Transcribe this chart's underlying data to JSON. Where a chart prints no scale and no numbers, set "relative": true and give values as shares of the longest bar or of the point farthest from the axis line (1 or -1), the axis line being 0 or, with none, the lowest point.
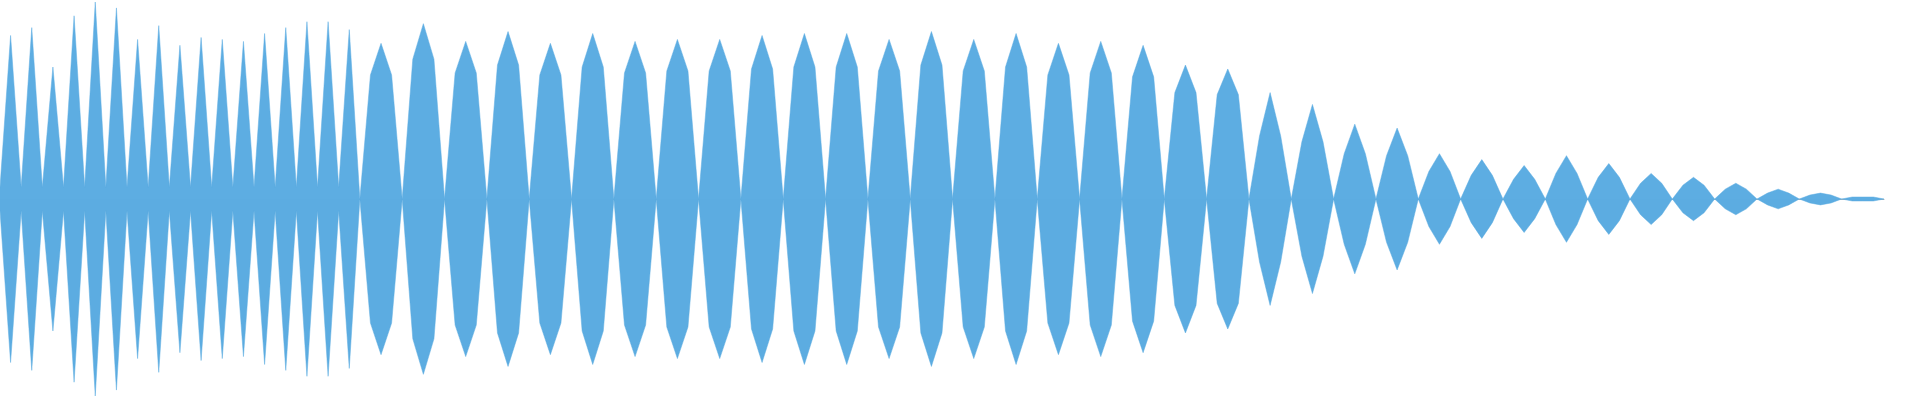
{
  "chart_data": {
    "type": "area",
    "relative": true,
    "categories": [
      null,
      null,
      null,
      null,
      null,
      null,
      null,
      null,
      null,
      null,
      null,
      null,
      null,
      null,
      null,
      null,
      null,
      null,
      null,
      null,
      null,
      null,
      null,
      null,
      null,
      null,
      null,
      null,
      null,
      null,
      null,
      null,
      null,
      null,
      null,
      null,
      null,
      null,
      null,
      null,
      null,
      null,
      null,
      null,
      null,
      null,
      null,
      null,
      null,
      null,
      null,
      null,
      null,
      null,
      null,
      null,
      null,
      null,
      null,
      null,
      null,
      null,
      null,
      null,
      null,
      null,
      null,
      null,
      null,
      null,
      null,
      null,
      null,
      null,
      null,
      null,
      null,
      null,
      null,
      null,
      null,
      null,
      null,
      null,
      null,
      null,
      null,
      null,
      null,
      null,
      null,
      null,
      null,
      null,
      null,
      null,
      null,
      null,
      null,
      null,
      null,
      null,
      null,
      null,
      null,
      null,
      null,
      null,
      null,
      null,
      null,
      null,
      null,
      null,
      null,
      null,
      null,
      null,
      null,
      null,
      null,
      null,
      null,
      null,
      null,
      null,
      null,
      null,
      null,
      null,
      null,
      null,
      null,
      null,
      null,
      null,
      null,
      null,
      null,
      null,
      null,
      null,
      null,
      null,
      null,
      null,
      null,
      null,
      null,
      null,
      null,
      null,
      null,
      null,
      null,
      null,
      null,
      null,
      null,
      null,
      null,
      null,
      null,
      null,
      null,
      null,
      null,
      null,
      null,
      null,
      null,
      null,
      null,
      null,
      null,
      null,
      null,
      null,
      null
    ],
    "series": [
      {
        "color": "#5dade2",
        "values": [
          0.06,
          0.83,
          0.06,
          0.87,
          0.06,
          0.67,
          0.06,
          0.93,
          0.06,
          1,
          0.06,
          0.97,
          0.06,
          0.81,
          0.06,
          0.88,
          0.06,
          0.78,
          0.06,
          0.82,
          0.06,
          0.81,
          0.06,
          0.8,
          0.06,
          0.84,
          0.06,
          0.87,
          0.06,
          0.9,
          0.06,
          0.9,
          0.06,
          0.86,
          0,
          0.63,
          0.79,
          0.63,
          0,
          0.71,
          0.89,
          0.71,
          0,
          0.64,
          0.8,
          0.64,
          0,
          0.68,
          0.85,
          0.68,
          0,
          0.63,
          0.79,
          0.63,
          0,
          0.67,
          0.84,
          0.67,
          0,
          0.64,
          0.8,
          0.64,
          0,
          0.65,
          0.81,
          0.65,
          0,
          0.65,
          0.81,
          0.65,
          0,
          0.66,
          0.83,
          0.66,
          0,
          0.67,
          0.84,
          0.67,
          0,
          0.67,
          0.84,
          0.67,
          0,
          0.65,
          0.81,
          0.65,
          0,
          0.68,
          0.85,
          0.68,
          0,
          0.65,
          0.81,
          0.65,
          0,
          0.67,
          0.84,
          0.67,
          0,
          0.63,
          0.79,
          0.63,
          0,
          0.64,
          0.8,
          0.64,
          0,
          0.62,
          0.78,
          0.62,
          0,
          0.54,
          0.68,
          0.54,
          0,
          0.53,
          0.66,
          0.53,
          0,
          0.32,
          0.54,
          0.32,
          0,
          0.29,
          0.48,
          0.29,
          0,
          0.23,
          0.38,
          0.23,
          0,
          0.22,
          0.36,
          0.22,
          0,
          0.14,
          0.23,
          0.14,
          0,
          0.12,
          0.2,
          0.12,
          0,
          0.1,
          0.17,
          0.1,
          0,
          0.13,
          0.22,
          0.13,
          0,
          0.11,
          0.18,
          0.11,
          0,
          0.08,
          0.13,
          0.08,
          0,
          0.07,
          0.11,
          0.07,
          0,
          0.05,
          0.08,
          0.05,
          0,
          0.03,
          0.05,
          0.03,
          0,
          0.02,
          0.03,
          0.02,
          0,
          0.01,
          0.01,
          0.01,
          0
        ]
      },
      {
        "color": "#5cace1",
        "values": [
          -0.06,
          -0.83,
          -0.06,
          -0.87,
          -0.06,
          -0.67,
          -0.06,
          -0.93,
          -0.06,
          -1,
          -0.06,
          -0.97,
          -0.06,
          -0.81,
          -0.06,
          -0.88,
          -0.06,
          -0.78,
          -0.06,
          -0.82,
          -0.06,
          -0.81,
          -0.06,
          -0.8,
          -0.06,
          -0.84,
          -0.06,
          -0.87,
          -0.06,
          -0.9,
          -0.06,
          -0.9,
          -0.06,
          -0.86,
          0,
          -0.63,
          -0.79,
          -0.63,
          0,
          -0.71,
          -0.89,
          -0.71,
          0,
          -0.64,
          -0.8,
          -0.64,
          0,
          -0.68,
          -0.85,
          -0.68,
          0,
          -0.63,
          -0.79,
          -0.63,
          0,
          -0.67,
          -0.84,
          -0.67,
          0,
          -0.64,
          -0.8,
          -0.64,
          0,
          -0.65,
          -0.81,
          -0.65,
          0,
          -0.65,
          -0.81,
          -0.65,
          0,
          -0.66,
          -0.83,
          -0.66,
          0,
          -0.67,
          -0.84,
          -0.67,
          0,
          -0.67,
          -0.84,
          -0.67,
          0,
          -0.65,
          -0.81,
          -0.65,
          0,
          -0.68,
          -0.85,
          -0.68,
          0,
          -0.65,
          -0.81,
          -0.65,
          0,
          -0.67,
          -0.84,
          -0.67,
          0,
          -0.63,
          -0.79,
          -0.63,
          0,
          -0.64,
          -0.8,
          -0.64,
          0,
          -0.62,
          -0.78,
          -0.62,
          0,
          -0.54,
          -0.68,
          -0.54,
          0,
          -0.53,
          -0.66,
          -0.53,
          0,
          -0.32,
          -0.54,
          -0.32,
          0,
          -0.29,
          -0.48,
          -0.29,
          0,
          -0.23,
          -0.38,
          -0.23,
          0,
          -0.22,
          -0.36,
          -0.22,
          0,
          -0.14,
          -0.23,
          -0.14,
          0,
          -0.12,
          -0.2,
          -0.12,
          0,
          -0.1,
          -0.17,
          -0.1,
          0,
          -0.13,
          -0.22,
          -0.13,
          0,
          -0.11,
          -0.18,
          -0.11,
          0,
          -0.08,
          -0.13,
          -0.08,
          0,
          -0.07,
          -0.11,
          -0.07,
          0,
          -0.05,
          -0.08,
          -0.05,
          0,
          -0.03,
          -0.05,
          -0.03,
          0,
          -0.02,
          -0.03,
          -0.02,
          0,
          -0.01,
          -0.01,
          -0.01,
          0
        ]
      }
    ]
  }
}
